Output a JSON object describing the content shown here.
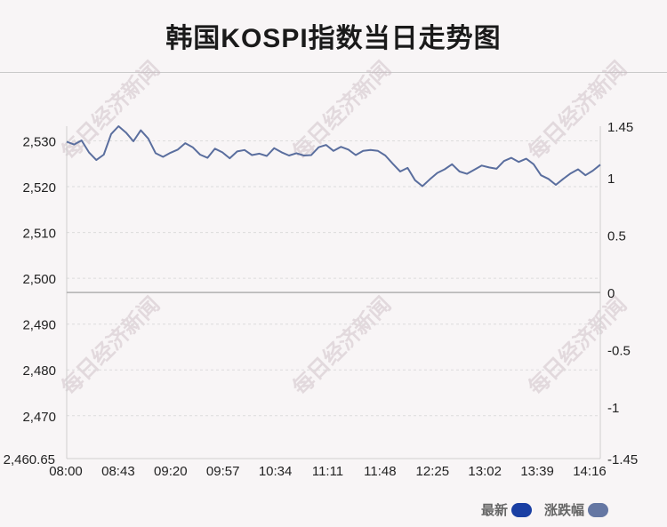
{
  "title": "韩国KOSPI指数当日走势图",
  "watermark": "每日经济新闻",
  "legend": [
    {
      "label": "最新",
      "color": "#1a3fa3"
    },
    {
      "label": "涨跌幅",
      "color": "#6577a3"
    }
  ],
  "chart_data": {
    "type": "line",
    "left_axis": {
      "ticks": [
        "2,530",
        "2,520",
        "2,510",
        "2,500",
        "2,490",
        "2,480",
        "2,470",
        "2,460.65"
      ],
      "values": [
        2530,
        2520,
        2510,
        2500,
        2490,
        2480,
        2470,
        2460.65
      ]
    },
    "right_axis": {
      "ticks": [
        "1.45",
        "1",
        "0.5",
        "0",
        "-0.5",
        "-1",
        "-1.45"
      ],
      "values": [
        1.45,
        1,
        0.5,
        0,
        -0.5,
        -1,
        -1.45
      ]
    },
    "ylim": [
      2460.65,
      2533.2
    ],
    "baseline": 2496.9,
    "x_ticks": [
      "08:00",
      "08:43",
      "09:20",
      "09:57",
      "10:34",
      "11:11",
      "11:48",
      "12:25",
      "13:02",
      "13:39",
      "14:16"
    ],
    "line_color": "#5a6e9e",
    "series": [
      {
        "values": [
          2529.8,
          2529.2,
          2530.1,
          2527.5,
          2525.8,
          2527,
          2531.5,
          2533.2,
          2531.8,
          2529.9,
          2532.3,
          2530.5,
          2527.3,
          2526.5,
          2527.4,
          2528.1,
          2529.5,
          2528.6,
          2527,
          2526.3,
          2528.3,
          2527.5,
          2526.2,
          2527.7,
          2528,
          2526.9,
          2527.2,
          2526.7,
          2528.4,
          2527.5,
          2526.8,
          2527.3,
          2526.8,
          2526.9,
          2528.6,
          2529.1,
          2527.8,
          2528.7,
          2528.1,
          2526.9,
          2527.8,
          2528,
          2527.8,
          2526.8,
          2525,
          2523.3,
          2524.1,
          2521.4,
          2520.1,
          2521.6,
          2523,
          2523.8,
          2524.9,
          2523.3,
          2522.8,
          2523.7,
          2524.6,
          2524.2,
          2523.9,
          2525.6,
          2526.3,
          2525.4,
          2526.1,
          2524.9,
          2522.5,
          2521.7,
          2520.4,
          2521.7,
          2522.9,
          2523.8,
          2522.5,
          2523.5,
          2524.8
        ]
      }
    ]
  }
}
